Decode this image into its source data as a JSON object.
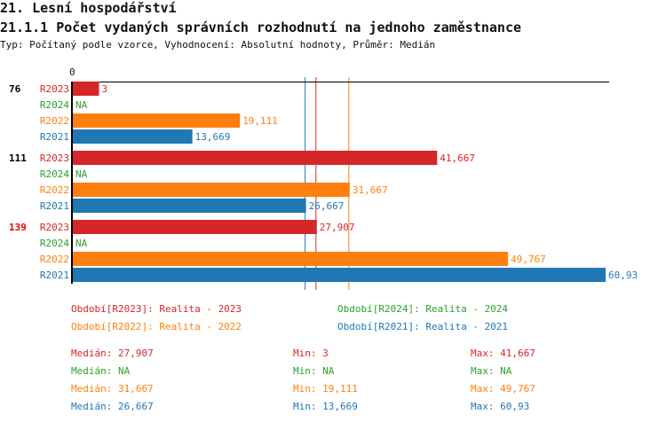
{
  "title": "21. Lesní hospodářství",
  "subtitle": "21.1.1 Počet vydaných správních rozhodnutí na jednoho zaměstnance",
  "info": "Typ: Počítaný podle vzorce, Vyhodnocení: Absolutní hodnoty, Průměr: Medián",
  "colors": {
    "R2023": "#d62728",
    "R2024": "#2ca02c",
    "R2022": "#ff7f0e",
    "R2021": "#1f77b4"
  },
  "chart_data": {
    "type": "bar",
    "orientation": "horizontal",
    "axis_tick": "0",
    "xlim": [
      0,
      60.93
    ],
    "groups": [
      {
        "label": "76",
        "highlight": false,
        "bars": [
          {
            "series": "R2023",
            "value": 3,
            "label": "3"
          },
          {
            "series": "R2024",
            "value": null,
            "label": "NA"
          },
          {
            "series": "R2022",
            "value": 19.111,
            "label": "19,111"
          },
          {
            "series": "R2021",
            "value": 13.669,
            "label": "13,669"
          }
        ]
      },
      {
        "label": "111",
        "highlight": false,
        "bars": [
          {
            "series": "R2023",
            "value": 41.667,
            "label": "41,667"
          },
          {
            "series": "R2024",
            "value": null,
            "label": "NA"
          },
          {
            "series": "R2022",
            "value": 31.667,
            "label": "31,667"
          },
          {
            "series": "R2021",
            "value": 26.667,
            "label": "26,667"
          }
        ]
      },
      {
        "label": "139",
        "highlight": true,
        "bars": [
          {
            "series": "R2023",
            "value": 27.907,
            "label": "27,907"
          },
          {
            "series": "R2024",
            "value": null,
            "label": "NA"
          },
          {
            "series": "R2022",
            "value": 49.767,
            "label": "49,767"
          },
          {
            "series": "R2021",
            "value": 60.93,
            "label": "60,93"
          }
        ]
      }
    ],
    "median_lines": [
      {
        "series": "R2021",
        "value": 26.667
      },
      {
        "series": "R2023",
        "value": 27.907
      },
      {
        "series": "R2022",
        "value": 31.667
      }
    ]
  },
  "legend": [
    {
      "series": "R2023",
      "text": "Období[R2023]: Realita - 2023"
    },
    {
      "series": "R2024",
      "text": "Období[R2024]: Realita - 2024"
    },
    {
      "series": "R2022",
      "text": "Období[R2022]: Realita - 2022"
    },
    {
      "series": "R2021",
      "text": "Období[R2021]: Realita - 2021"
    }
  ],
  "stats": [
    {
      "series": "R2023",
      "median": "Medián: 27,907",
      "min": "Min: 3",
      "max": "Max: 41,667"
    },
    {
      "series": "R2024",
      "median": "Medián: NA",
      "min": "Min: NA",
      "max": "Max: NA"
    },
    {
      "series": "R2022",
      "median": "Medián: 31,667",
      "min": "Min: 19,111",
      "max": "Max: 49,767"
    },
    {
      "series": "R2021",
      "median": "Medián: 26,667",
      "min": "Min: 13,669",
      "max": "Max: 60,93"
    }
  ]
}
